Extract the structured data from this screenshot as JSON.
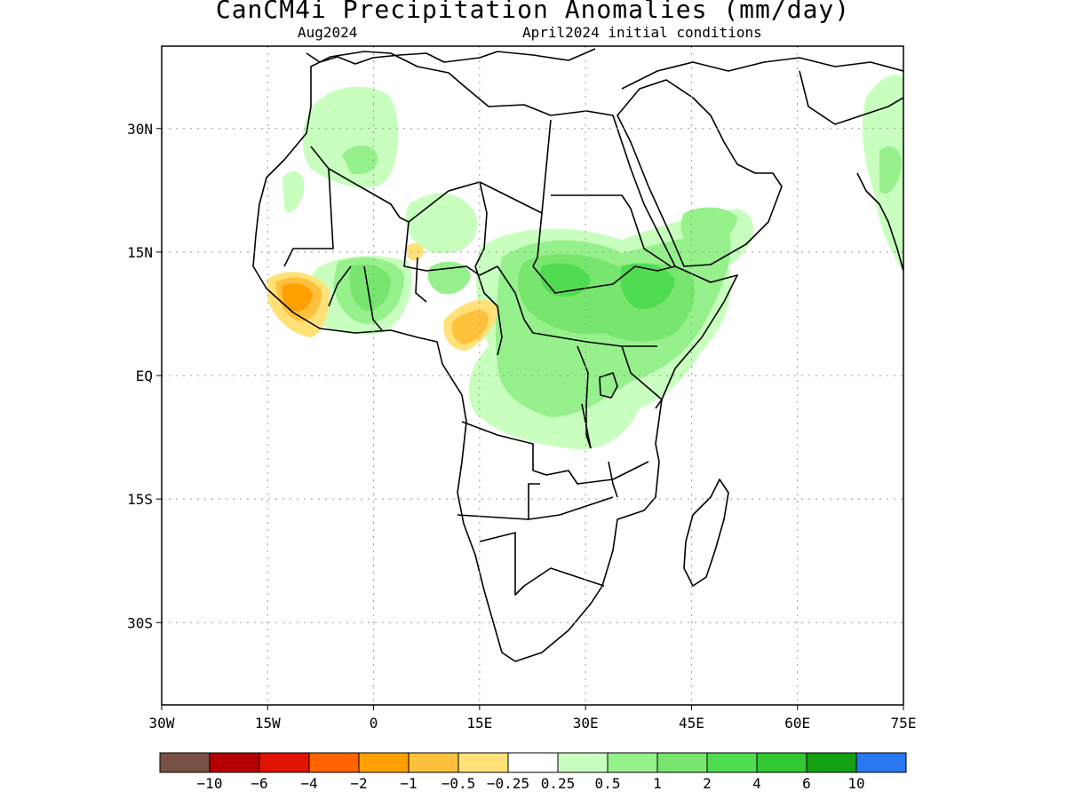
{
  "title": "CanCM4i Precipitation Anomalies (mm/day)",
  "subtitle_left": "Aug2024",
  "subtitle_right": "April2024 initial conditions",
  "axes": {
    "lon_ticks": [
      "30W",
      "15W",
      "0",
      "15E",
      "30E",
      "45E",
      "60E",
      "75E"
    ],
    "lat_ticks": [
      "30N",
      "15N",
      "EQ",
      "15S",
      "30S"
    ],
    "lon_range": [
      -30,
      75
    ],
    "lat_range": [
      -40,
      40
    ],
    "grid": "dotted"
  },
  "colorbar": {
    "colors": [
      "#7a4f44",
      "#b40000",
      "#e01400",
      "#ff6400",
      "#ffa000",
      "#ffc03c",
      "#ffe178",
      "#ffffff",
      "#c8ffbe",
      "#96f08c",
      "#78e66e",
      "#50dc50",
      "#32c832",
      "#14a014",
      "#2878f0"
    ],
    "labels": [
      "-10",
      "-6",
      "-4",
      "-2",
      "-1",
      "-0.5",
      "-0.25",
      "0.25",
      "0.5",
      "1",
      "2",
      "4",
      "6",
      "10"
    ]
  }
}
